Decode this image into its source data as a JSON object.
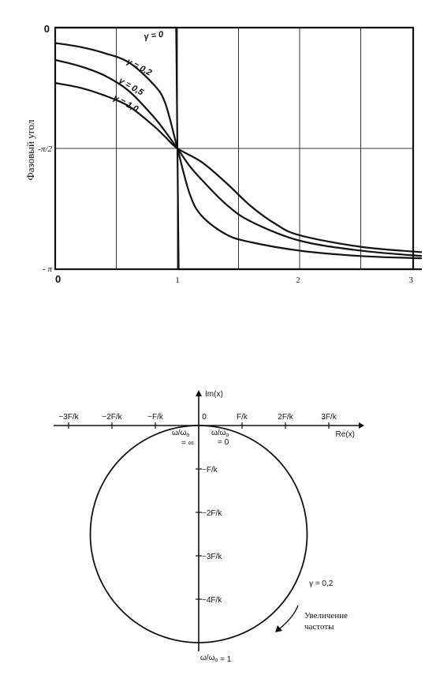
{
  "chart_data": [
    {
      "type": "line",
      "ylabel": "Фазовый угол",
      "xlim": [
        0,
        3
      ],
      "x_ticks": [
        "0",
        "1",
        "2",
        "3"
      ],
      "y_ticks": [
        "0",
        "-π/2",
        "- π"
      ],
      "grid": true,
      "series": [
        {
          "name": "γ = 0",
          "x": [
            0,
            0.99,
            1.0,
            1.01,
            3
          ],
          "y": [
            0,
            0,
            -1.5708,
            -3.1416,
            -3.1416
          ]
        },
        {
          "name": "γ = 0,2",
          "x": [
            0,
            0.2,
            0.4,
            0.6,
            0.8,
            0.9,
            1.0,
            1.1,
            1.2,
            1.4,
            1.6,
            2.0,
            2.5,
            3.0
          ],
          "y": [
            -0.2,
            -0.25,
            -0.33,
            -0.45,
            -0.73,
            -0.98,
            -1.5708,
            -2.16,
            -2.45,
            -2.69,
            -2.79,
            -2.9,
            -2.97,
            -3.0
          ]
        },
        {
          "name": "γ = 0,5",
          "x": [
            0,
            0.2,
            0.4,
            0.6,
            0.8,
            0.9,
            1.0,
            1.1,
            1.2,
            1.4,
            1.6,
            2.0,
            2.5,
            3.0
          ],
          "y": [
            -0.42,
            -0.5,
            -0.62,
            -0.82,
            -1.15,
            -1.35,
            -1.5708,
            -1.8,
            -1.98,
            -2.3,
            -2.52,
            -2.77,
            -2.9,
            -2.97
          ]
        },
        {
          "name": "γ = 1,0",
          "x": [
            0,
            0.2,
            0.4,
            0.6,
            0.8,
            0.9,
            1.0,
            1.2,
            1.4,
            1.6,
            1.8,
            2.0,
            2.5,
            3.0
          ],
          "y": [
            -0.72,
            -0.78,
            -0.88,
            -1.02,
            -1.27,
            -1.42,
            -1.5708,
            -1.75,
            -2.02,
            -2.32,
            -2.55,
            -2.7,
            -2.85,
            -2.92
          ]
        }
      ]
    },
    {
      "type": "line",
      "xlabel": "Re(x)",
      "ylabel": "Im(x)",
      "x_ticks": [
        "−3F/k",
        "−2F/k",
        "−F/k",
        "0",
        "F/k",
        "2F/k",
        "3F/k"
      ],
      "y_ticks": [
        "−F/k",
        "−2F/k",
        "−3F/k",
        "−4F/k"
      ],
      "labels": {
        "start": "ω/ω₀ = 0",
        "end": "ω/ω₀ = ∞",
        "resonance": "ω/ω₀ = 1",
        "gamma": "γ = 0,2",
        "direction": [
          "Увеличение",
          "частоты"
        ]
      },
      "series": [
        {
          "name": "γ = 0,2",
          "shape": "circle",
          "center_re": 0,
          "center_im": -2.5,
          "radius": 2.5
        }
      ]
    }
  ]
}
